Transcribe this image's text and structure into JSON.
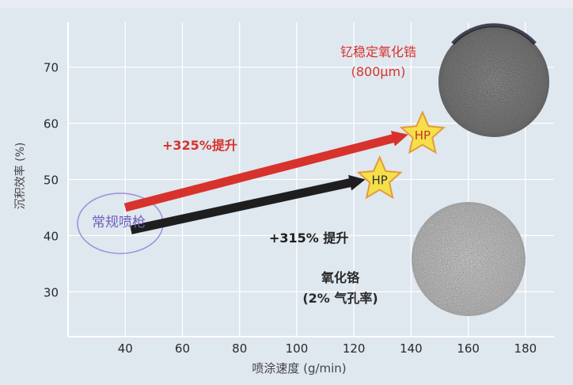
{
  "chart_data": {
    "type": "scatter",
    "title": "",
    "xlabel": "喷涂速度 (g/min)",
    "ylabel": "沉积效率 (%)",
    "xlim": [
      20,
      190
    ],
    "ylim": [
      22,
      78
    ],
    "x_ticks": [
      40,
      60,
      80,
      100,
      120,
      140,
      160,
      180
    ],
    "y_ticks": [
      30,
      40,
      50,
      60,
      70
    ],
    "grid": true,
    "gun_label": "常规喷枪",
    "hp_label": "HP",
    "arrows": [
      {
        "label": "+325%提升",
        "color": "#d8322c",
        "from": [
          40,
          45
        ],
        "to": [
          139,
          58
        ]
      },
      {
        "label": "+315% 提升",
        "color": "#1e1e1e",
        "from": [
          42,
          41
        ],
        "to": [
          124,
          50
        ]
      }
    ],
    "points": [
      {
        "name": "HP",
        "x": 144,
        "y": 58
      },
      {
        "name": "HP",
        "x": 129,
        "y": 50
      }
    ],
    "annotations": [
      {
        "line1": "钇稳定氧化锆",
        "line2": "(800μm)",
        "color": "#d8322c"
      },
      {
        "line1": "氧化铬",
        "line2": "(2% 气孔率)",
        "color": "#2a2a2a"
      }
    ],
    "colors": {
      "background": "#dfe7ef",
      "grid": "#ffffff",
      "axis_text": "#2a2a2a",
      "red_arrow": "#d8322c",
      "black_arrow": "#1e1e1e",
      "star_fill": "#f6e04a",
      "star_stroke": "#e29b3a",
      "ellipse": "#9d8fd4"
    }
  }
}
